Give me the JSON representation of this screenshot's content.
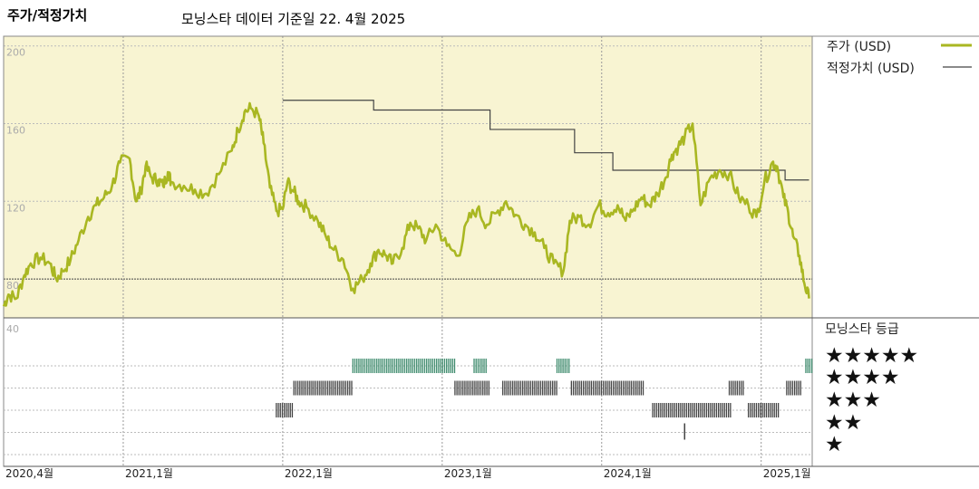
{
  "header": {
    "title": "주가/적정가치",
    "subtitle": "모닝스타 데이터 기준일 22. 4월 2025"
  },
  "colors": {
    "panel_bg": "#f8f4d2",
    "price_line": "#a9b722",
    "fair_value_line": "#444444",
    "star_5": "#3d8a6c",
    "star_other": "#444444"
  },
  "chart_data": {
    "type": "line",
    "y_ticks": [
      200,
      160,
      120,
      80
    ],
    "ylim": [
      60,
      205
    ],
    "rating_tick": 40,
    "x_ticks": [
      "2020,4월",
      "2021,1월",
      "2022,1월",
      "2023,1월",
      "2024,1월",
      "2025,1월"
    ],
    "x_tick_months": [
      2020.25,
      2021.0,
      2022.0,
      2023.0,
      2024.0,
      2025.0
    ],
    "xlim": [
      2020.25,
      2025.32
    ],
    "legend": {
      "price": "주가 (USD)",
      "fair_value": "적정가치 (USD)",
      "rating_title": "모닝스타 등급",
      "stars": [
        "★★★★★",
        "★★★★",
        "★★★",
        "★★",
        "★"
      ]
    },
    "series": [
      {
        "name": "주가 (USD)",
        "x": [
          2020.25,
          2020.28,
          2020.33,
          2020.38,
          2020.42,
          2020.48,
          2020.54,
          2020.58,
          2020.62,
          2020.67,
          2020.72,
          2020.78,
          2020.83,
          2020.88,
          2020.93,
          2020.98,
          2021.04,
          2021.08,
          2021.11,
          2021.14,
          2021.18,
          2021.22,
          2021.25,
          2021.28,
          2021.3,
          2021.38,
          2021.45,
          2021.52,
          2021.6,
          2021.68,
          2021.72,
          2021.76,
          2021.8,
          2021.85,
          2021.88,
          2021.92,
          2021.96,
          2022.0,
          2022.03,
          2022.07,
          2022.1,
          2022.15,
          2022.22,
          2022.27,
          2022.32,
          2022.38,
          2022.44,
          2022.5,
          2022.55,
          2022.6,
          2022.65,
          2022.69,
          2022.75,
          2022.8,
          2022.85,
          2022.9,
          2022.96,
          2023.03,
          2023.1,
          2023.16,
          2023.22,
          2023.28,
          2023.34,
          2023.4,
          2023.46,
          2023.52,
          2023.58,
          2023.64,
          2023.7,
          2023.76,
          2023.8,
          2023.86,
          2023.92,
          2023.98,
          2024.04,
          2024.1,
          2024.15,
          2024.2,
          2024.25,
          2024.3,
          2024.35,
          2024.4,
          2024.44,
          2024.48,
          2024.52,
          2024.57,
          2024.62,
          2024.68,
          2024.74,
          2024.8,
          2024.86,
          2024.92,
          2024.97,
          2025.02,
          2025.07,
          2025.1,
          2025.14,
          2025.17,
          2025.2,
          2025.24,
          2025.27,
          2025.3
        ],
        "values": [
          66,
          72,
          70,
          82,
          88,
          91,
          88,
          80,
          84,
          90,
          100,
          112,
          118,
          122,
          128,
          140,
          142,
          120,
          125,
          138,
          132,
          131,
          128,
          135,
          130,
          128,
          126,
          124,
          134,
          146,
          157,
          166,
          168,
          164,
          150,
          127,
          115,
          116,
          130,
          125,
          120,
          117,
          110,
          102,
          95,
          90,
          75,
          80,
          88,
          95,
          92,
          88,
          96,
          109,
          106,
          100,
          108,
          97,
          92,
          110,
          116,
          108,
          114,
          120,
          113,
          108,
          104,
          96,
          88,
          84,
          110,
          112,
          108,
          118,
          114,
          118,
          110,
          116,
          122,
          118,
          124,
          132,
          144,
          148,
          153,
          160,
          118,
          132,
          136,
          134,
          122,
          118,
          112,
          130,
          140,
          138,
          122,
          114,
          102,
          92,
          78,
          70
        ]
      },
      {
        "name": "적정가치 (USD)",
        "x": [
          2022.0,
          2022.57,
          2023.3,
          2023.83,
          2024.07,
          2025.15,
          2025.3
        ],
        "values": [
          172,
          167,
          157,
          145,
          136,
          131,
          131
        ],
        "x_end": 2025.15
      }
    ],
    "ratings": [
      {
        "stars": 5,
        "ranges": [
          [
            2022.44,
            2023.08
          ],
          [
            2023.2,
            2023.28
          ],
          [
            2023.72,
            2023.8
          ],
          [
            2025.28,
            2025.32
          ]
        ]
      },
      {
        "stars": 4,
        "ranges": [
          [
            2022.07,
            2022.44
          ],
          [
            2023.08,
            2023.3
          ],
          [
            2023.38,
            2023.72
          ],
          [
            2023.81,
            2024.27
          ],
          [
            2024.8,
            2024.9
          ],
          [
            2025.16,
            2025.25
          ]
        ]
      },
      {
        "stars": 3,
        "ranges": [
          [
            2021.96,
            2022.07
          ],
          [
            2024.32,
            2024.82
          ],
          [
            2024.92,
            2025.12
          ]
        ]
      },
      {
        "stars": 2,
        "ranges": [
          [
            2024.52,
            2024.53
          ]
        ]
      },
      {
        "stars": 1,
        "ranges": []
      }
    ]
  }
}
